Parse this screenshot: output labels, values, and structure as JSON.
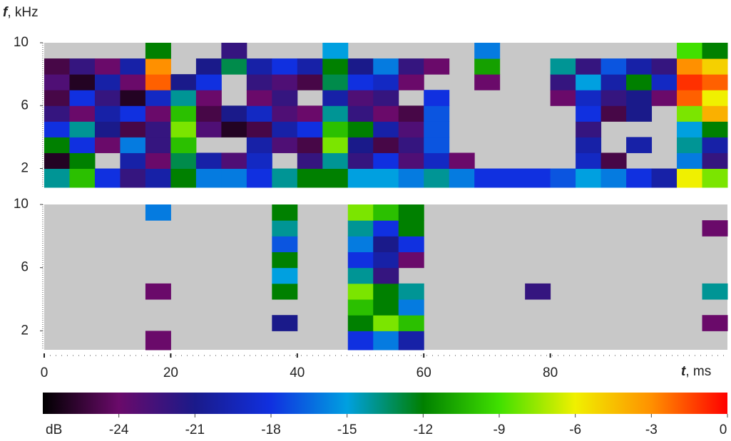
{
  "chart_data": {
    "type": "spectrogram",
    "ylabel": {
      "symbol": "f",
      "unit": ", kHz"
    },
    "xlabel": {
      "symbol": "t",
      "unit": ", ms"
    },
    "xlim": [
      0,
      108
    ],
    "xticks": [
      0,
      20,
      40,
      60,
      80
    ],
    "ylim": [
      0.8,
      10
    ],
    "yticks": [
      2,
      6,
      10
    ],
    "t_bins": [
      0,
      4,
      8,
      12,
      16,
      20,
      24,
      28,
      32,
      36,
      40,
      44,
      48,
      52,
      56,
      60,
      64,
      68,
      72,
      76,
      80,
      84,
      88,
      92,
      96,
      100,
      104,
      108
    ],
    "f_bins": [
      0.8,
      2,
      3,
      4,
      5,
      6,
      7,
      8,
      9,
      10
    ],
    "background": "#c8c8c8",
    "colorbar": {
      "label": "dB",
      "clim": [
        -27,
        0
      ],
      "ticks": [
        -24,
        -21,
        -18,
        -15,
        -12,
        -9,
        -6,
        -3,
        0
      ],
      "colormap": [
        "#000000",
        "#6a0a6a",
        "#1a1a8a",
        "#1030e0",
        "#00a0e0",
        "#008000",
        "#40e000",
        "#f0f000",
        "#ff9000",
        "#ff0000"
      ]
    },
    "panels": [
      {
        "z": [
          [
            -14,
            -10,
            -18,
            -22,
            -20,
            -12,
            -16,
            -16,
            -18,
            -14,
            -12,
            -12,
            -15,
            -15,
            -16,
            -14,
            -16,
            -18,
            -18,
            -18,
            -17,
            -15,
            -16,
            -18,
            -20,
            -6,
            -8
          ],
          [
            -26,
            -12,
            null,
            -20,
            -24,
            -13,
            -20,
            -23,
            -19,
            null,
            -22,
            -14,
            -22,
            -18,
            -23,
            -19,
            -24,
            null,
            null,
            null,
            null,
            -19,
            -25,
            null,
            null,
            -16,
            -22
          ],
          [
            -12,
            -18,
            -24,
            -16,
            -22,
            -10,
            null,
            null,
            -20,
            -23,
            -25,
            -8,
            -21,
            -25,
            -22,
            -17,
            null,
            null,
            null,
            null,
            null,
            -20,
            null,
            -20,
            null,
            -14,
            -20
          ],
          [
            -18,
            -14,
            -21,
            -25,
            -22,
            -8,
            -23,
            -26,
            -25,
            -20,
            -18,
            -10,
            -12,
            -20,
            -23,
            -17,
            null,
            null,
            null,
            null,
            null,
            -22,
            null,
            null,
            null,
            -15,
            -12
          ],
          [
            -22,
            -24,
            -20,
            -18,
            -24,
            -10,
            -25,
            -21,
            -19,
            -23,
            -24,
            -14,
            -22,
            -24,
            -25,
            -17,
            null,
            null,
            null,
            null,
            null,
            -18,
            -25,
            -21,
            null,
            -8,
            -4
          ],
          [
            -25,
            -18,
            -22,
            -26,
            -19,
            -14,
            -24,
            null,
            -24,
            -22,
            null,
            -20,
            -23,
            -22,
            null,
            -18,
            null,
            null,
            null,
            null,
            -24,
            -19,
            -22,
            -21,
            -24,
            -2,
            -6
          ],
          [
            -23,
            -26,
            -20,
            -24,
            -2,
            -21,
            -18,
            null,
            -22,
            -23,
            -25,
            -13,
            -18,
            -19,
            -24,
            null,
            null,
            -24,
            null,
            null,
            -22,
            -15,
            -20,
            -12,
            -19,
            -1,
            -2
          ],
          [
            -25,
            -22,
            -24,
            -20,
            -3,
            null,
            -21,
            -13,
            -20,
            -18,
            -20,
            -12,
            -21,
            -16,
            -22,
            -24,
            null,
            -11,
            null,
            null,
            -14,
            -22,
            -17,
            -20,
            -22,
            -3,
            -5
          ],
          [
            null,
            null,
            null,
            null,
            -12,
            null,
            null,
            -22,
            null,
            null,
            null,
            -15,
            null,
            null,
            null,
            null,
            null,
            -16,
            null,
            null,
            null,
            null,
            null,
            null,
            null,
            -9,
            -12
          ]
        ]
      },
      {
        "z": [
          [
            null,
            null,
            null,
            null,
            -24,
            null,
            null,
            null,
            null,
            null,
            null,
            null,
            -18,
            -16,
            -20,
            null,
            null,
            null,
            null,
            null,
            null,
            null,
            null,
            null,
            null,
            null,
            null
          ],
          [
            null,
            null,
            null,
            null,
            null,
            null,
            null,
            null,
            null,
            -21,
            null,
            null,
            -12,
            -8,
            -10,
            null,
            null,
            null,
            null,
            null,
            null,
            null,
            null,
            null,
            null,
            null,
            -24
          ],
          [
            null,
            null,
            null,
            null,
            null,
            null,
            null,
            null,
            null,
            null,
            null,
            null,
            -10,
            -12,
            -16,
            null,
            null,
            null,
            null,
            null,
            null,
            null,
            null,
            null,
            null,
            null,
            null
          ],
          [
            null,
            null,
            null,
            null,
            -24,
            null,
            null,
            null,
            null,
            -12,
            null,
            null,
            -8,
            -12,
            -14,
            null,
            null,
            null,
            null,
            -22,
            null,
            null,
            null,
            null,
            null,
            null,
            -14
          ],
          [
            null,
            null,
            null,
            null,
            null,
            null,
            null,
            null,
            null,
            -15,
            null,
            null,
            -14,
            -22,
            null,
            null,
            null,
            null,
            null,
            null,
            null,
            null,
            null,
            null,
            null,
            null,
            null
          ],
          [
            null,
            null,
            null,
            null,
            null,
            null,
            null,
            null,
            null,
            -12,
            null,
            null,
            -18,
            -20,
            -24,
            null,
            null,
            null,
            null,
            null,
            null,
            null,
            null,
            null,
            null,
            null,
            null
          ],
          [
            null,
            null,
            null,
            null,
            null,
            null,
            null,
            null,
            null,
            -17,
            null,
            null,
            -16,
            -21,
            -18,
            null,
            null,
            null,
            null,
            null,
            null,
            null,
            null,
            null,
            null,
            null,
            null
          ],
          [
            null,
            null,
            null,
            null,
            null,
            null,
            null,
            null,
            null,
            -14,
            null,
            null,
            -14,
            -18,
            -12,
            null,
            null,
            null,
            null,
            null,
            null,
            null,
            null,
            null,
            null,
            null,
            -24
          ],
          [
            null,
            null,
            null,
            null,
            -16,
            null,
            null,
            null,
            null,
            -12,
            null,
            null,
            -8,
            -10,
            -12,
            null,
            null,
            null,
            null,
            null,
            null,
            null,
            null,
            null,
            null,
            null,
            null
          ]
        ]
      }
    ]
  }
}
